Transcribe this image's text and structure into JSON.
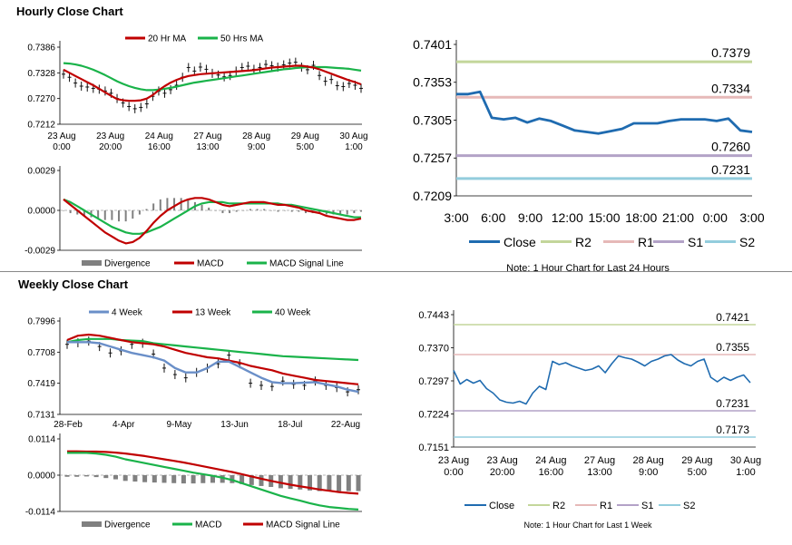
{
  "sections": {
    "hourly_title": "Hourly Close Chart",
    "weekly_title": "Weekly Close Chart"
  },
  "colors": {
    "ma_red": "#c00000",
    "ma_green": "#1ab34a",
    "blue_ma": "#6a8fc8",
    "close_blue": "#1f6bb0",
    "r2": "#c3d69b",
    "r1": "#e6b9b8",
    "s1": "#b3a2c7",
    "s2": "#93cddd",
    "divergence": "#808080"
  },
  "chart_data": [
    {
      "id": "hourly_price",
      "type": "line",
      "ylim": [
        0.7212,
        0.7386
      ],
      "yticks": [
        "0.7386",
        "0.7328",
        "0.7270",
        "0.7212"
      ],
      "xticks": [
        {
          "top": "23 Aug",
          "bottom": "0:00"
        },
        {
          "top": "23 Aug",
          "bottom": "20:00"
        },
        {
          "top": "24 Aug",
          "bottom": "16:00"
        },
        {
          "top": "27 Aug",
          "bottom": "13:00"
        },
        {
          "top": "28 Aug",
          "bottom": "9:00"
        },
        {
          "top": "29 Aug",
          "bottom": "5:00"
        },
        {
          "top": "30 Aug",
          "bottom": "1:00"
        }
      ],
      "legend": [
        "20 Hr MA",
        "50 Hrs MA"
      ],
      "price": [
        0.7325,
        0.7318,
        0.7305,
        0.7298,
        0.7296,
        0.7293,
        0.7291,
        0.7287,
        0.7282,
        0.727,
        0.726,
        0.7252,
        0.7247,
        0.725,
        0.7258,
        0.7275,
        0.7287,
        0.7282,
        0.729,
        0.73,
        0.7318,
        0.734,
        0.7332,
        0.7341,
        0.7336,
        0.7327,
        0.7323,
        0.7319,
        0.7322,
        0.7332,
        0.734,
        0.7343,
        0.7336,
        0.734,
        0.7347,
        0.7344,
        0.7341,
        0.7346,
        0.735,
        0.7352,
        0.7341,
        0.7335,
        0.7345,
        0.7322,
        0.7309,
        0.7313,
        0.7299,
        0.7297,
        0.7304,
        0.73,
        0.7293
      ],
      "ma20": [
        0.7335,
        0.7328,
        0.7321,
        0.7314,
        0.7307,
        0.73,
        0.7292,
        0.7284,
        0.7276,
        0.7269,
        0.7266,
        0.7265,
        0.7265,
        0.7266,
        0.727,
        0.7278,
        0.7289,
        0.7298,
        0.7306,
        0.7312,
        0.7317,
        0.7321,
        0.7323,
        0.7325,
        0.7326,
        0.7327,
        0.7328,
        0.7329,
        0.733,
        0.7331,
        0.7332,
        0.7333,
        0.7334,
        0.7336,
        0.7338,
        0.734,
        0.7341,
        0.7342,
        0.7343,
        0.7344,
        0.7344,
        0.7342,
        0.734,
        0.7336,
        0.7331,
        0.7326,
        0.7321,
        0.7316,
        0.7311,
        0.7307,
        0.7302
      ],
      "ma50": [
        0.735,
        0.7349,
        0.7347,
        0.7344,
        0.734,
        0.7335,
        0.7329,
        0.7323,
        0.7316,
        0.7309,
        0.7303,
        0.7298,
        0.7294,
        0.7291,
        0.7289,
        0.7289,
        0.729,
        0.7292,
        0.7294,
        0.7297,
        0.73,
        0.7303,
        0.7306,
        0.7308,
        0.731,
        0.7312,
        0.7314,
        0.7316,
        0.7318,
        0.732,
        0.7322,
        0.7324,
        0.7326,
        0.7328,
        0.733,
        0.7332,
        0.7334,
        0.7336,
        0.7337,
        0.7339,
        0.734,
        0.7341,
        0.7341,
        0.7341,
        0.7341,
        0.734,
        0.7339,
        0.7338,
        0.7337,
        0.7335,
        0.7333
      ]
    },
    {
      "id": "hourly_macd",
      "type": "bar",
      "ylim": [
        -0.0029,
        0.0029
      ],
      "yticks": [
        "0.0029",
        "0.0000",
        "-0.0029"
      ],
      "legend": [
        "Divergence",
        "MACD",
        "MACD Signal Line"
      ],
      "macd": [
        0.0008,
        0.0004,
        0.0,
        -0.0004,
        -0.0008,
        -0.0012,
        -0.0016,
        -0.0019,
        -0.0022,
        -0.0024,
        -0.0023,
        -0.002,
        -0.0015,
        -0.0009,
        -0.0004,
        0.0,
        0.0003,
        0.0006,
        0.0008,
        0.0009,
        0.0009,
        0.0008,
        0.0006,
        0.0004,
        0.0003,
        0.0004,
        0.0005,
        0.0006,
        0.0006,
        0.0006,
        0.0005,
        0.0004,
        0.0004,
        0.0003,
        0.0002,
        0.0,
        -0.0001,
        -0.0002,
        -0.0004,
        -0.0005,
        -0.0006,
        -0.0007,
        -0.0007,
        -0.0006
      ],
      "signal": [
        0.0008,
        0.0006,
        0.0003,
        0.0,
        -0.0003,
        -0.0006,
        -0.0009,
        -0.0012,
        -0.0014,
        -0.0016,
        -0.0017,
        -0.0017,
        -0.0016,
        -0.0014,
        -0.0012,
        -0.0009,
        -0.0006,
        -0.0003,
        0.0,
        0.0003,
        0.0005,
        0.0006,
        0.0006,
        0.0006,
        0.0005,
        0.0005,
        0.0005,
        0.0005,
        0.0005,
        0.0005,
        0.0005,
        0.0005,
        0.0004,
        0.0004,
        0.0003,
        0.0002,
        0.0001,
        0.0,
        -0.0001,
        -0.0002,
        -0.0003,
        -0.0004,
        -0.0005,
        -0.0005
      ]
    },
    {
      "id": "hourly_24h",
      "type": "line",
      "ylim": [
        0.7209,
        0.7401
      ],
      "yticks": [
        "0.7401",
        "0.7353",
        "0.7305",
        "0.7257",
        "0.7209"
      ],
      "xticks": [
        "3:00",
        "6:00",
        "9:00",
        "12:00",
        "15:00",
        "18:00",
        "21:00",
        "0:00",
        "3:00"
      ],
      "close": [
        0.7338,
        0.7338,
        0.7341,
        0.7308,
        0.7306,
        0.7308,
        0.7302,
        0.7307,
        0.7304,
        0.7298,
        0.7292,
        0.729,
        0.7288,
        0.7291,
        0.7294,
        0.7301,
        0.7301,
        0.7301,
        0.7304,
        0.7306,
        0.7306,
        0.7306,
        0.7304,
        0.7307,
        0.7292,
        0.729
      ],
      "levels": [
        {
          "name": "R2",
          "value": 0.7379,
          "label": "0.7379"
        },
        {
          "name": "R1",
          "value": 0.7334,
          "label": "0.7334"
        },
        {
          "name": "S1",
          "value": 0.726,
          "label": "0.7260"
        },
        {
          "name": "S2",
          "value": 0.7231,
          "label": "0.7231"
        }
      ],
      "legend": [
        "Close",
        "R2",
        "R1",
        "S1",
        "S2"
      ],
      "note": "Note: 1 Hour Chart for Last 24 Hours"
    },
    {
      "id": "weekly_price",
      "type": "line",
      "ylim": [
        0.7131,
        0.7996
      ],
      "yticks": [
        "0.7996",
        "0.7708",
        "0.7419",
        "0.7131"
      ],
      "xticks": [
        "28-Feb",
        "4-Apr",
        "9-May",
        "13-Jun",
        "18-Jul",
        "22-Aug"
      ],
      "legend": [
        "4 Week",
        "13 Week",
        "40 Week"
      ],
      "price": [
        0.778,
        0.7795,
        0.781,
        0.776,
        0.77,
        0.772,
        0.778,
        0.779,
        0.769,
        0.756,
        0.75,
        0.747,
        0.752,
        0.756,
        0.76,
        0.768,
        0.76,
        0.742,
        0.74,
        0.739,
        0.744,
        0.741,
        0.74,
        0.744,
        0.74,
        0.738,
        0.734,
        0.736
      ],
      "ma4": [
        0.78,
        0.78,
        0.78,
        0.779,
        0.776,
        0.773,
        0.77,
        0.768,
        0.766,
        0.763,
        0.756,
        0.752,
        0.752,
        0.756,
        0.762,
        0.762,
        0.757,
        0.752,
        0.747,
        0.743,
        0.742,
        0.742,
        0.7425,
        0.743,
        0.741,
        0.739,
        0.736,
        0.734
      ],
      "ma13": [
        0.782,
        0.786,
        0.787,
        0.786,
        0.784,
        0.782,
        0.78,
        0.779,
        0.778,
        0.776,
        0.773,
        0.77,
        0.768,
        0.766,
        0.765,
        0.763,
        0.761,
        0.758,
        0.756,
        0.754,
        0.751,
        0.749,
        0.747,
        0.745,
        0.744,
        0.743,
        0.742,
        0.741
      ],
      "ma40": [
        0.78,
        0.782,
        0.783,
        0.783,
        0.783,
        0.782,
        0.7815,
        0.781,
        0.779,
        0.778,
        0.777,
        0.776,
        0.775,
        0.774,
        0.773,
        0.772,
        0.771,
        0.77,
        0.769,
        0.768,
        0.767,
        0.7665,
        0.766,
        0.7655,
        0.765,
        0.7645,
        0.764,
        0.7635
      ]
    },
    {
      "id": "weekly_macd",
      "type": "bar",
      "ylim": [
        -0.0114,
        0.0114
      ],
      "yticks": [
        "0.0114",
        "0.0000",
        "-0.0114"
      ],
      "legend": [
        "Divergence",
        "MACD",
        "MACD Signal Line"
      ],
      "macd": [
        0.007,
        0.007,
        0.007,
        0.0068,
        0.0064,
        0.0058,
        0.005,
        0.0044,
        0.0038,
        0.0032,
        0.0026,
        0.002,
        0.0014,
        0.0008,
        0.0003,
        -0.0002,
        -0.0008,
        -0.0015,
        -0.0025,
        -0.0035,
        -0.0045,
        -0.0055,
        -0.0065,
        -0.0073,
        -0.008,
        -0.0088,
        -0.0095,
        -0.01,
        -0.0103,
        -0.0106,
        -0.0108
      ],
      "signal": [
        0.0075,
        0.0075,
        0.0074,
        0.0074,
        0.0073,
        0.0071,
        0.0068,
        0.0064,
        0.006,
        0.0055,
        0.005,
        0.0045,
        0.004,
        0.0034,
        0.0028,
        0.0022,
        0.0016,
        0.001,
        0.0003,
        -0.0004,
        -0.0011,
        -0.0018,
        -0.0024,
        -0.003,
        -0.0035,
        -0.004,
        -0.0045,
        -0.0049,
        -0.0053,
        -0.0056,
        -0.0058
      ]
    },
    {
      "id": "weekly_1w",
      "type": "line",
      "ylim": [
        0.7151,
        0.7443
      ],
      "yticks": [
        "0.7443",
        "0.7370",
        "0.7297",
        "0.7224",
        "0.7151"
      ],
      "xticks": [
        {
          "top": "23 Aug",
          "bottom": "0:00"
        },
        {
          "top": "23 Aug",
          "bottom": "20:00"
        },
        {
          "top": "24 Aug",
          "bottom": "16:00"
        },
        {
          "top": "27 Aug",
          "bottom": "13:00"
        },
        {
          "top": "28 Aug",
          "bottom": "9:00"
        },
        {
          "top": "29 Aug",
          "bottom": "5:00"
        },
        {
          "top": "30 Aug",
          "bottom": "1:00"
        }
      ],
      "close": [
        0.732,
        0.729,
        0.73,
        0.7292,
        0.7298,
        0.728,
        0.727,
        0.7255,
        0.725,
        0.7248,
        0.7252,
        0.7246,
        0.727,
        0.7285,
        0.7278,
        0.734,
        0.7333,
        0.7337,
        0.733,
        0.7325,
        0.732,
        0.7323,
        0.733,
        0.7315,
        0.7335,
        0.7352,
        0.7348,
        0.7345,
        0.7338,
        0.733,
        0.734,
        0.7345,
        0.7352,
        0.7355,
        0.7343,
        0.7335,
        0.733,
        0.734,
        0.7345,
        0.7305,
        0.7295,
        0.7305,
        0.7298,
        0.7305,
        0.731,
        0.7293
      ],
      "levels": [
        {
          "name": "R2",
          "value": 0.7421,
          "label": "0.7421"
        },
        {
          "name": "R1",
          "value": 0.7355,
          "label": "0.7355"
        },
        {
          "name": "S1",
          "value": 0.7231,
          "label": "0.7231"
        },
        {
          "name": "S2",
          "value": 0.7173,
          "label": "0.7173"
        }
      ],
      "legend": [
        "Close",
        "R2",
        "R1",
        "S1",
        "S2"
      ],
      "note": "Note: 1 Hour Chart for Last 1 Week"
    }
  ]
}
